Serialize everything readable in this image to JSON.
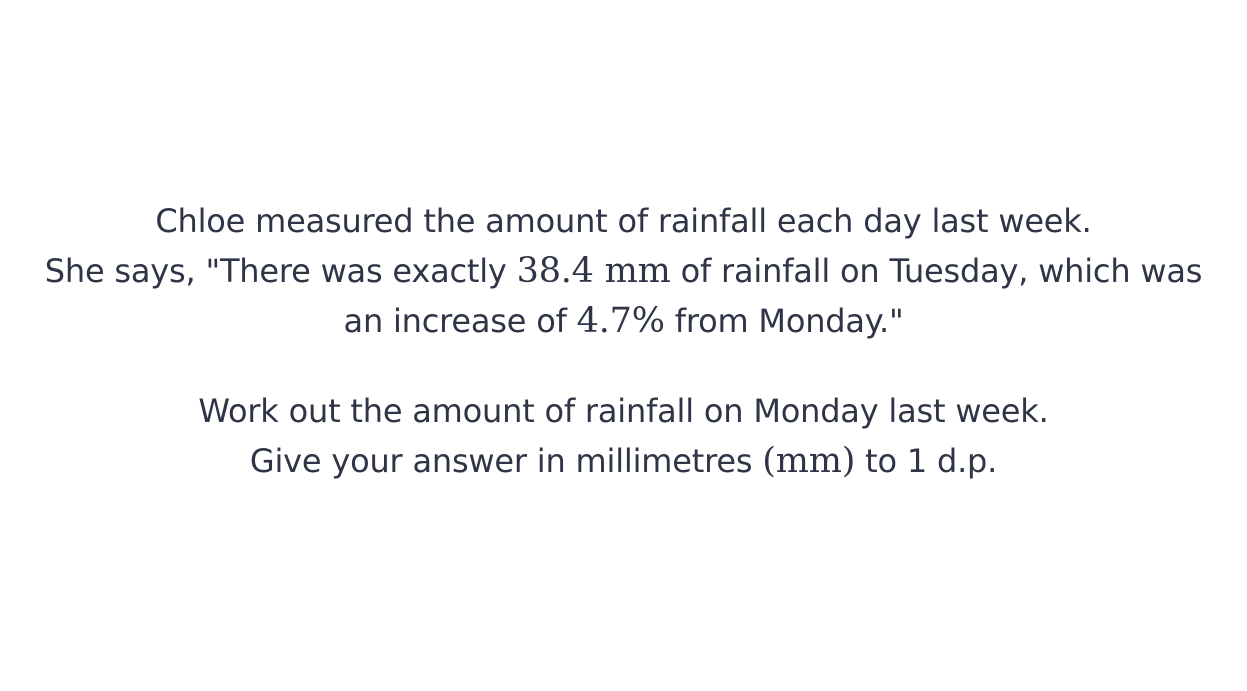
{
  "question": {
    "line1": "Chloe measured the amount of rainfall each day last week.",
    "line2_prefix": "She says, \"There was exactly ",
    "tuesday_rainfall": "38.4 mm",
    "line2_suffix": " of rainfall on Tuesday, which was",
    "line3_prefix": "an increase of ",
    "increase_percent": "4.7%",
    "line3_suffix": " from Monday.\"",
    "task_line1": "Work out the amount of rainfall on Monday last week.",
    "task_line2_prefix": "Give your answer in millimetres ",
    "unit": "(mm)",
    "task_line2_suffix": " to 1 d.p."
  }
}
